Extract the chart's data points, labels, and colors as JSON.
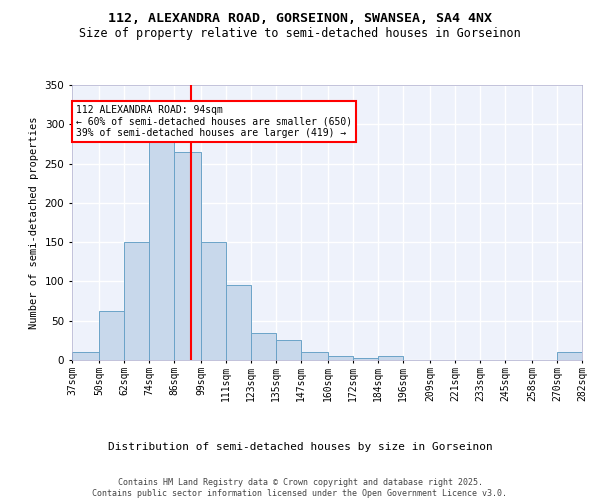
{
  "title1": "112, ALEXANDRA ROAD, GORSEINON, SWANSEA, SA4 4NX",
  "title2": "Size of property relative to semi-detached houses in Gorseinon",
  "xlabel": "Distribution of semi-detached houses by size in Gorseinon",
  "ylabel": "Number of semi-detached properties",
  "annotation_title": "112 ALEXANDRA ROAD: 94sqm",
  "annotation_line1": "← 60% of semi-detached houses are smaller (650)",
  "annotation_line2": "39% of semi-detached houses are larger (419) →",
  "footer1": "Contains HM Land Registry data © Crown copyright and database right 2025.",
  "footer2": "Contains public sector information licensed under the Open Government Licence v3.0.",
  "bar_left_edges": [
    37,
    50,
    62,
    74,
    86,
    99,
    111,
    123,
    135,
    147,
    160,
    172,
    184,
    196,
    209,
    221,
    233,
    245,
    258,
    270
  ],
  "bar_widths": [
    13,
    12,
    12,
    12,
    13,
    12,
    12,
    12,
    12,
    13,
    12,
    12,
    12,
    13,
    12,
    12,
    12,
    13,
    12,
    12
  ],
  "bar_heights": [
    10,
    62,
    150,
    280,
    265,
    150,
    95,
    35,
    25,
    10,
    5,
    3,
    5,
    0,
    0,
    0,
    0,
    0,
    0,
    10
  ],
  "tick_labels": [
    "37sqm",
    "50sqm",
    "62sqm",
    "74sqm",
    "86sqm",
    "99sqm",
    "111sqm",
    "123sqm",
    "135sqm",
    "147sqm",
    "160sqm",
    "172sqm",
    "184sqm",
    "196sqm",
    "209sqm",
    "221sqm",
    "233sqm",
    "245sqm",
    "258sqm",
    "270sqm",
    "282sqm"
  ],
  "bar_color": "#c8d8eb",
  "bar_edgecolor": "#6ba3c8",
  "vline_x": 94,
  "vline_color": "red",
  "ylim": [
    0,
    350
  ],
  "yticks": [
    0,
    50,
    100,
    150,
    200,
    250,
    300,
    350
  ],
  "xlim_left": 37,
  "xlim_right": 282,
  "background_color": "#eef2fb",
  "grid_color": "#ffffff",
  "annotation_box_facecolor": "white",
  "annotation_box_edgecolor": "red",
  "title1_fontsize": 9.5,
  "title2_fontsize": 8.5,
  "ylabel_fontsize": 7.5,
  "xlabel_fontsize": 8,
  "tick_fontsize": 7,
  "annotation_fontsize": 7,
  "footer_fontsize": 6
}
